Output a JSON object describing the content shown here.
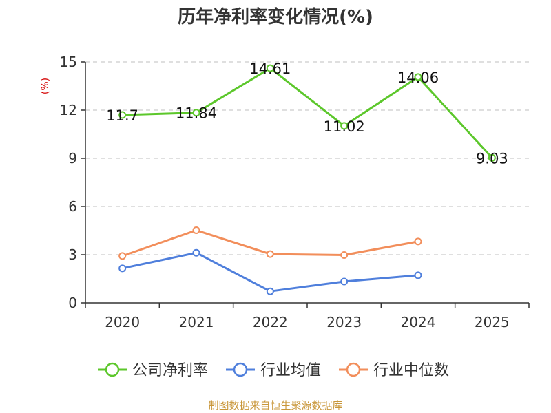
{
  "title": "历年净利率变化情况(%)",
  "source": "制图数据来自恒生聚源数据库",
  "colors": {
    "company": "#5cc72b",
    "industry_avg": "#4f7fdc",
    "industry_median": "#f28e5b",
    "grid": "#cccccc",
    "axis": "#333333",
    "unit": "#d40000",
    "source": "#c9973a"
  },
  "chart_data": {
    "type": "line",
    "categories": [
      "2020",
      "2021",
      "2022",
      "2023",
      "2024",
      "2025"
    ],
    "ylabel": "(%)",
    "ylim": [
      0,
      15
    ],
    "yticks": [
      0,
      3,
      6,
      9,
      12,
      15
    ],
    "grid": true,
    "legend_position": "bottom",
    "series": [
      {
        "name": "公司净利率",
        "values": [
          11.7,
          11.84,
          14.61,
          11.02,
          14.06,
          9.03
        ],
        "labels": [
          "11.7",
          "11.84",
          "14.61",
          "11.02",
          "14.06",
          "9.03"
        ]
      },
      {
        "name": "行业均值",
        "values": [
          2.15,
          3.12,
          0.72,
          1.33,
          1.72,
          null
        ]
      },
      {
        "name": "行业中位数",
        "values": [
          2.92,
          4.52,
          3.04,
          2.98,
          3.82,
          null
        ]
      }
    ]
  }
}
